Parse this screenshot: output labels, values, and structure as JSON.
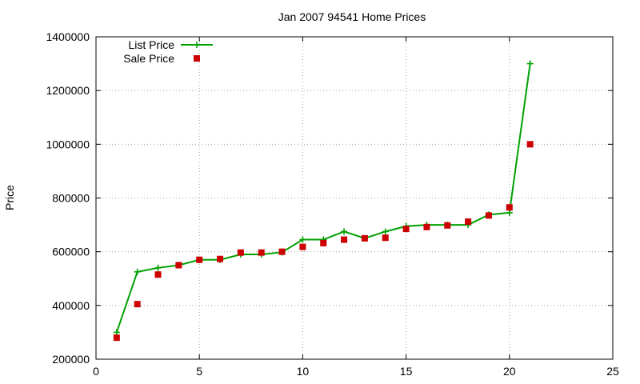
{
  "chart_data": {
    "type": "line",
    "title": "Jan 2007 94541 Home Prices",
    "xlabel": "",
    "ylabel": "Price",
    "xlim": [
      0,
      25
    ],
    "ylim": [
      200000,
      1400000
    ],
    "x_ticks": [
      0,
      5,
      10,
      15,
      20,
      25
    ],
    "y_ticks": [
      200000,
      400000,
      600000,
      800000,
      1000000,
      1200000,
      1400000
    ],
    "grid": true,
    "legend_position": "top-left",
    "series": [
      {
        "name": "List Price",
        "style": "line-plus",
        "color": "#00a000",
        "x": [
          1,
          2,
          3,
          4,
          5,
          6,
          7,
          8,
          9,
          10,
          11,
          12,
          13,
          14,
          15,
          16,
          17,
          18,
          19,
          20,
          21
        ],
        "y": [
          300000,
          525000,
          540000,
          550000,
          570000,
          570000,
          590000,
          590000,
          598000,
          645000,
          645000,
          675000,
          650000,
          675000,
          695000,
          700000,
          700000,
          700000,
          738000,
          745000,
          1300000
        ]
      },
      {
        "name": "Sale Price",
        "style": "square-points",
        "color": "#cc0000",
        "x": [
          1,
          2,
          3,
          4,
          5,
          6,
          7,
          8,
          9,
          10,
          11,
          12,
          13,
          14,
          15,
          16,
          17,
          18,
          19,
          20,
          21
        ],
        "y": [
          280000,
          405000,
          515000,
          550000,
          570000,
          573000,
          597000,
          597000,
          600000,
          618000,
          632000,
          645000,
          650000,
          652000,
          685000,
          692000,
          698000,
          712000,
          735000,
          765000,
          1000000
        ]
      }
    ]
  }
}
